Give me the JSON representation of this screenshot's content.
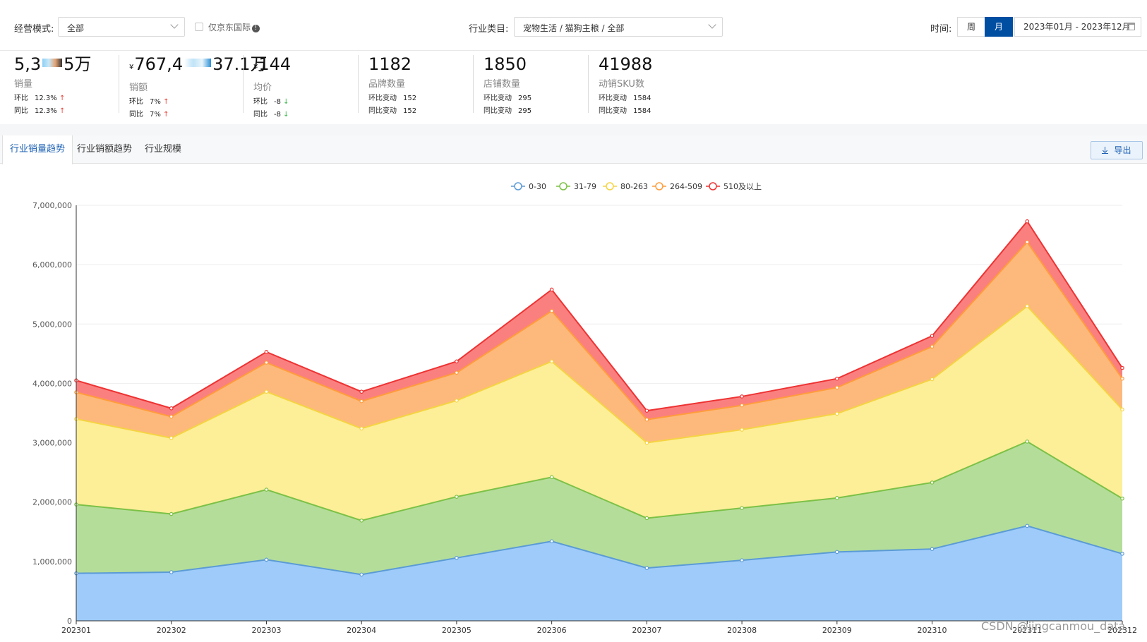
{
  "filters": {
    "mode_label": "经营模式:",
    "mode_value": "全部",
    "jd_intl_label": "仅京东国际",
    "category_label": "行业类目:",
    "category_value": "宠物生活 / 猫狗主粮 / 全部",
    "time_label": "时间:",
    "week_label": "周",
    "month_label": "月",
    "date_range": "2023年01月 - 2023年12月"
  },
  "kpis": [
    {
      "value_pre": "5,3",
      "value_post": "5万",
      "label": "销量",
      "r1_label": "环比",
      "r1_value": "12.3%",
      "r2_label": "同比",
      "r2_value": "12.3%"
    },
    {
      "currency": "¥",
      "value_pre": "767,4",
      "value_post": "37.1万",
      "label": "销额",
      "r1_label": "环比",
      "r1_value": "7%",
      "r2_label": "同比",
      "r2_value": "7%"
    },
    {
      "currency": "¥",
      "value": "144",
      "label": "均价",
      "r1_label": "环比",
      "r1_value": "-8",
      "r2_label": "同比",
      "r2_value": "-8"
    },
    {
      "value": "1182",
      "label": "品牌数量",
      "r1_label": "环比变动",
      "r1_value": "152",
      "r2_label": "同比变动",
      "r2_value": "152"
    },
    {
      "value": "1850",
      "label": "店铺数量",
      "r1_label": "环比变动",
      "r1_value": "295",
      "r2_label": "同比变动",
      "r2_value": "295"
    },
    {
      "value": "41988",
      "label": "动销SKU数",
      "r1_label": "环比变动",
      "r1_value": "1584",
      "r2_label": "同比变动",
      "r2_value": "1584"
    }
  ],
  "tabs": [
    "行业销量趋势",
    "行业销额趋势",
    "行业规模"
  ],
  "export_label": "导出",
  "watermark": "CSDN @jingcanmou_data",
  "chart_data": {
    "type": "area",
    "stacked": true,
    "categories": [
      "202301",
      "202302",
      "202303",
      "202304",
      "202305",
      "202306",
      "202307",
      "202308",
      "202309",
      "202310",
      "202311",
      "202312"
    ],
    "ylim": [
      0,
      7000000
    ],
    "yticks": [
      "0",
      "1,000,000",
      "2,000,000",
      "3,000,000",
      "4,000,000",
      "5,000,000",
      "6,000,000",
      "7,000,000"
    ],
    "legend_position": "top-center",
    "series": [
      {
        "name": "0-30",
        "color": "#5b9bd5",
        "fill": "#9ecbfa",
        "values": [
          800000,
          820000,
          1030000,
          780000,
          1060000,
          1340000,
          890000,
          1020000,
          1160000,
          1210000,
          1600000,
          1130000
        ]
      },
      {
        "name": "31-79",
        "color": "#7cc146",
        "fill": "#b4dd9a",
        "values": [
          1160000,
          980000,
          1180000,
          910000,
          1030000,
          1080000,
          840000,
          880000,
          910000,
          1120000,
          1420000,
          930000
        ]
      },
      {
        "name": "80-263",
        "color": "#f5d442",
        "fill": "#fdee98",
        "values": [
          1440000,
          1280000,
          1650000,
          1550000,
          1620000,
          1950000,
          1270000,
          1320000,
          1420000,
          1740000,
          2280000,
          1500000
        ]
      },
      {
        "name": "264-509",
        "color": "#ff9c3c",
        "fill": "#fdb97c",
        "values": [
          450000,
          360000,
          490000,
          460000,
          470000,
          850000,
          390000,
          410000,
          440000,
          550000,
          1080000,
          520000
        ]
      },
      {
        "name": "510及以上",
        "color": "#ee3333",
        "fill": "#fa8080",
        "values": [
          200000,
          140000,
          180000,
          160000,
          190000,
          360000,
          150000,
          150000,
          150000,
          180000,
          350000,
          180000
        ]
      }
    ]
  }
}
